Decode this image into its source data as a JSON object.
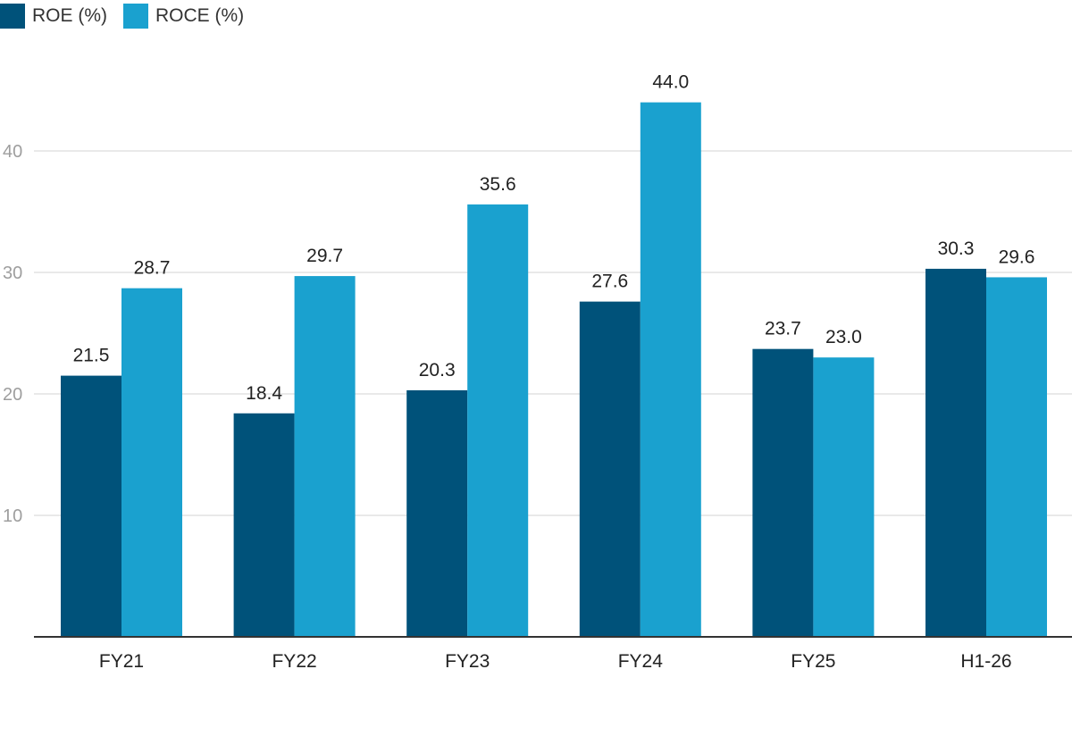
{
  "chart_data": {
    "type": "bar",
    "categories": [
      "FY21",
      "FY22",
      "FY23",
      "FY24",
      "FY25",
      "H1-26"
    ],
    "series": [
      {
        "name": "ROE (%)",
        "color": "#00527a",
        "values": [
          21.5,
          18.4,
          20.3,
          27.6,
          23.7,
          30.3
        ],
        "labels": [
          "21.5",
          "18.4",
          "20.3",
          "27.6",
          "23.7",
          "30.3"
        ]
      },
      {
        "name": "ROCE (%)",
        "color": "#1aa1cf",
        "values": [
          28.7,
          29.7,
          35.6,
          44.0,
          23.0,
          29.6
        ],
        "labels": [
          "28.7",
          "29.7",
          "35.6",
          "44.0",
          "23.0",
          "29.6"
        ]
      }
    ],
    "yticks": [
      10,
      20,
      30,
      40
    ],
    "ylim": [
      0,
      50
    ],
    "grid": true,
    "legend": "top-left",
    "title": "",
    "xlabel": "",
    "ylabel": ""
  }
}
